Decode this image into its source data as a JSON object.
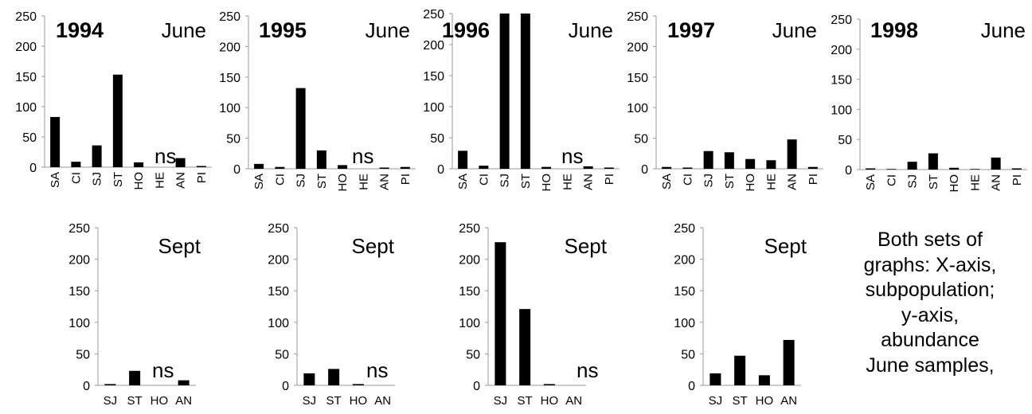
{
  "chart_data": [
    {
      "type": "bar",
      "panel": "June 1994",
      "year_label": "1994",
      "season_label": "June",
      "categories": [
        "SA",
        "CI",
        "SJ",
        "ST",
        "HO",
        "HE",
        "AN",
        "PI"
      ],
      "values": [
        83,
        9,
        36,
        153,
        8,
        0,
        15,
        2
      ],
      "ylim": [
        0,
        250
      ],
      "yticks": [
        0,
        50,
        100,
        150,
        200,
        250
      ],
      "annotation": "ns"
    },
    {
      "type": "bar",
      "panel": "June 1995",
      "year_label": "1995",
      "season_label": "June",
      "categories": [
        "SA",
        "CI",
        "SJ",
        "ST",
        "HO",
        "HE",
        "AN",
        "PI"
      ],
      "values": [
        8,
        3,
        132,
        30,
        6,
        0,
        2,
        3
      ],
      "ylim": [
        0,
        250
      ],
      "yticks": [
        0,
        50,
        100,
        150,
        200,
        250
      ],
      "annotation": "ns"
    },
    {
      "type": "bar",
      "panel": "June 1996",
      "year_label": "1996",
      "season_label": "June",
      "categories": [
        "SA",
        "CI",
        "SJ",
        "ST",
        "HO",
        "HE",
        "AN",
        "PI"
      ],
      "values": [
        29,
        5,
        250,
        250,
        3,
        0,
        4,
        2
      ],
      "ylim": [
        0,
        250
      ],
      "yticks": [
        0,
        50,
        100,
        150,
        200,
        250
      ],
      "annotation": "ns"
    },
    {
      "type": "bar",
      "panel": "June 1997",
      "year_label": "1997",
      "season_label": "June",
      "categories": [
        "SA",
        "CI",
        "SJ",
        "ST",
        "HO",
        "HE",
        "AN",
        "PI"
      ],
      "values": [
        3,
        2,
        29,
        27,
        16,
        14,
        48,
        3
      ],
      "ylim": [
        0,
        250
      ],
      "yticks": [
        0,
        50,
        100,
        150,
        200,
        250
      ]
    },
    {
      "type": "bar",
      "panel": "June 1998",
      "year_label": "1998",
      "season_label": "June",
      "categories": [
        "SA",
        "CI",
        "SJ",
        "ST",
        "HO",
        "HE",
        "AN",
        "PI"
      ],
      "values": [
        2,
        1,
        13,
        27,
        3,
        1,
        20,
        2
      ],
      "ylim": [
        0,
        250
      ],
      "yticks": [
        0,
        50,
        100,
        150,
        200,
        250
      ]
    },
    {
      "type": "bar",
      "panel": "Sept 1994",
      "season_label": "Sept",
      "categories": [
        "SJ",
        "ST",
        "HO",
        "AN"
      ],
      "values": [
        2,
        23,
        0,
        8
      ],
      "ylim": [
        0,
        250
      ],
      "yticks": [
        0,
        50,
        100,
        150,
        200,
        250
      ],
      "annotation": "ns"
    },
    {
      "type": "bar",
      "panel": "Sept 1995",
      "season_label": "Sept",
      "categories": [
        "SJ",
        "ST",
        "HO",
        "AN"
      ],
      "values": [
        19,
        26,
        2,
        0
      ],
      "ylim": [
        0,
        250
      ],
      "yticks": [
        0,
        50,
        100,
        150,
        200,
        250
      ],
      "annotation": "ns"
    },
    {
      "type": "bar",
      "panel": "Sept 1996",
      "season_label": "Sept",
      "categories": [
        "SJ",
        "ST",
        "HO",
        "AN"
      ],
      "values": [
        227,
        121,
        2,
        0
      ],
      "ylim": [
        0,
        250
      ],
      "yticks": [
        0,
        50,
        100,
        150,
        200,
        250
      ],
      "annotation": "ns"
    },
    {
      "type": "bar",
      "panel": "Sept 1997",
      "season_label": "Sept",
      "categories": [
        "SJ",
        "ST",
        "HO",
        "AN"
      ],
      "values": [
        19,
        47,
        16,
        72
      ],
      "ylim": [
        0,
        250
      ],
      "yticks": [
        0,
        50,
        100,
        150,
        200,
        250
      ]
    }
  ],
  "caption_lines": [
    "Both sets of",
    "graphs: X-axis,",
    "subpopulation;",
    "y-axis,",
    "abundance",
    "June samples,"
  ]
}
